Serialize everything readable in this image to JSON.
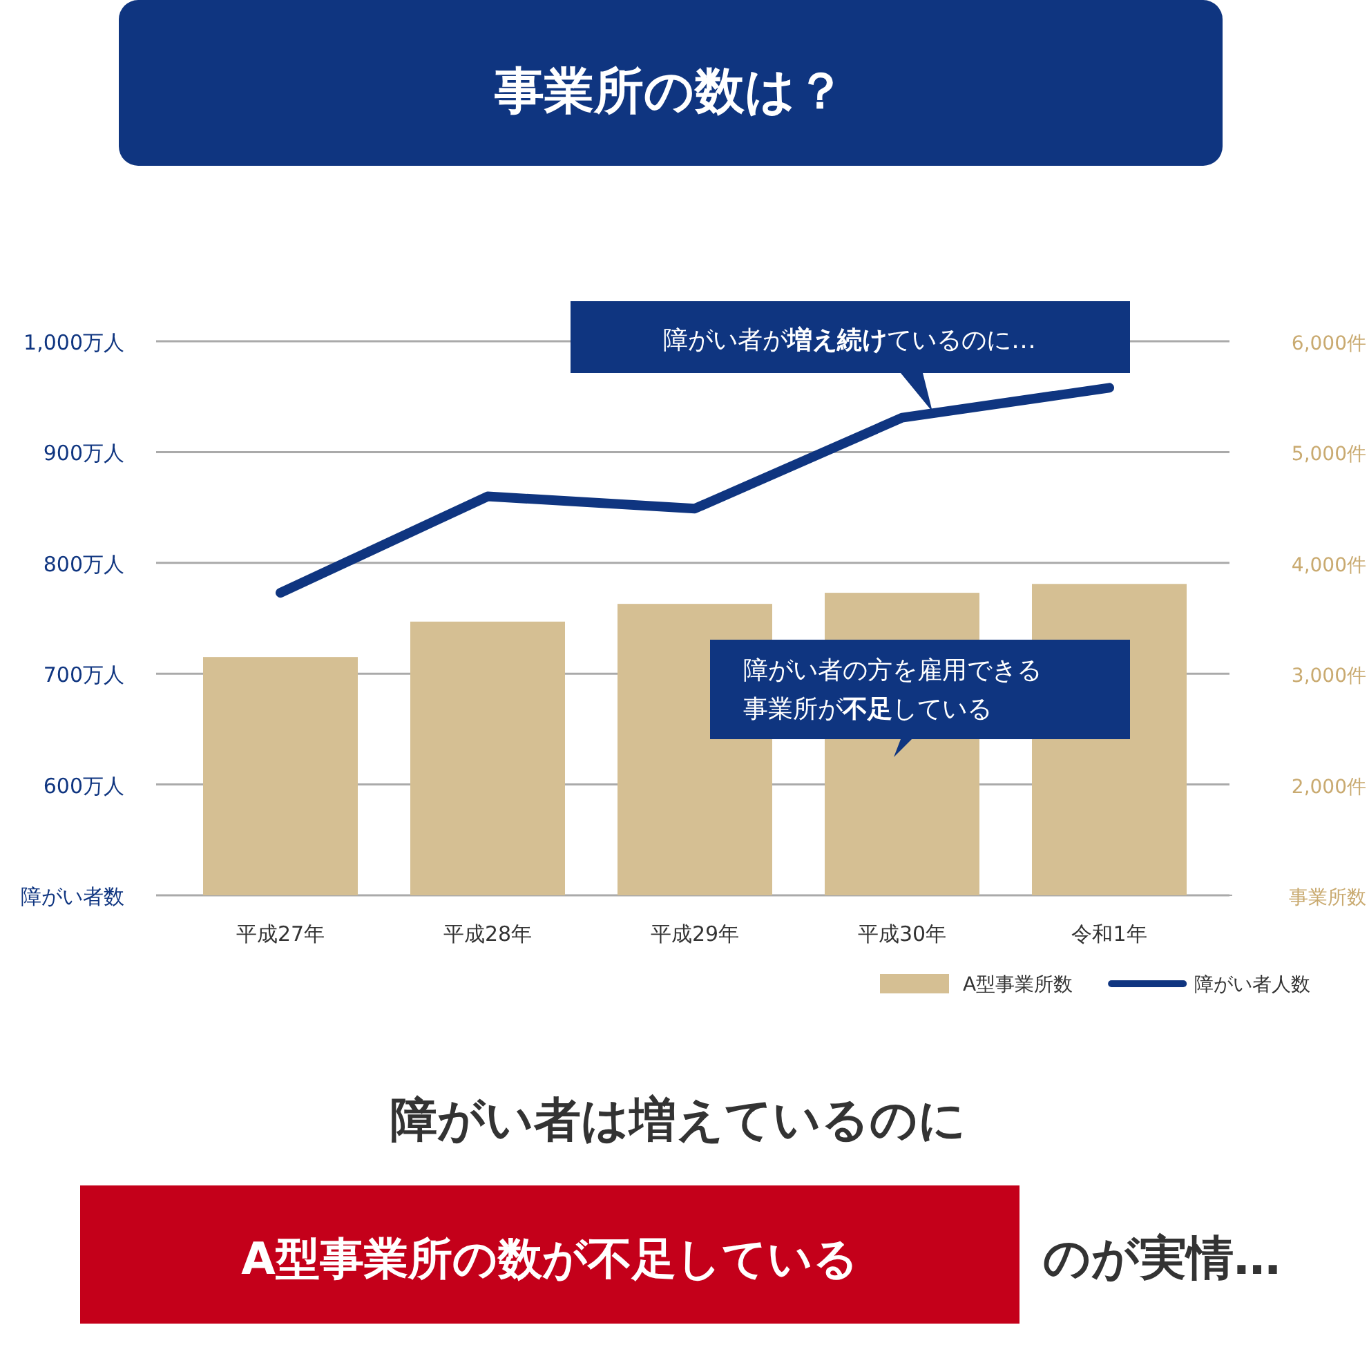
{
  "chart_data": {
    "type": "bar",
    "title": "事業所の数は？",
    "categories": [
      "平成27年",
      "平成28年",
      "平成29年",
      "平成30年",
      "令和1年"
    ],
    "series": [
      {
        "name": "A型事業所数",
        "axis": "y2",
        "color": "#d5bf93",
        "values": [
          3150,
          3470,
          3630,
          3730,
          3810
        ]
      },
      {
        "name": "障がい者人数",
        "type": "line",
        "axis": "y",
        "color": "#0f3580",
        "values": [
          773,
          860,
          849,
          931,
          958
        ]
      }
    ],
    "ylabel": "障がい者数",
    "y2label": "事業所数",
    "ylim": [
      500,
      1000
    ],
    "yticks": [
      {
        "value": 500,
        "label": null
      },
      {
        "value": 600,
        "label": "600万人"
      },
      {
        "value": 700,
        "label": "700万人"
      },
      {
        "value": 800,
        "label": "800万人"
      },
      {
        "value": 900,
        "label": "900万人"
      },
      {
        "value": 1000,
        "label": "1,000万人"
      }
    ],
    "y2lim": [
      1000,
      6000
    ],
    "y2ticks": [
      {
        "value": 1000,
        "label": null
      },
      {
        "value": 2000,
        "label": "2,000件"
      },
      {
        "value": 3000,
        "label": "3,000件"
      },
      {
        "value": 4000,
        "label": "4,000件"
      },
      {
        "value": 5000,
        "label": "5,000件"
      },
      {
        "value": 6000,
        "label": "6,000件"
      }
    ],
    "grid": "y",
    "legend": "bottom right",
    "annotations": [
      "障がい者が**増え続け**ているのに…",
      "障がい者の方を雇用できる事業所が**不足**している",
      "障がい者は増えているのに",
      "A型事業所の数が**不足**している",
      "のが実情…"
    ]
  }
}
